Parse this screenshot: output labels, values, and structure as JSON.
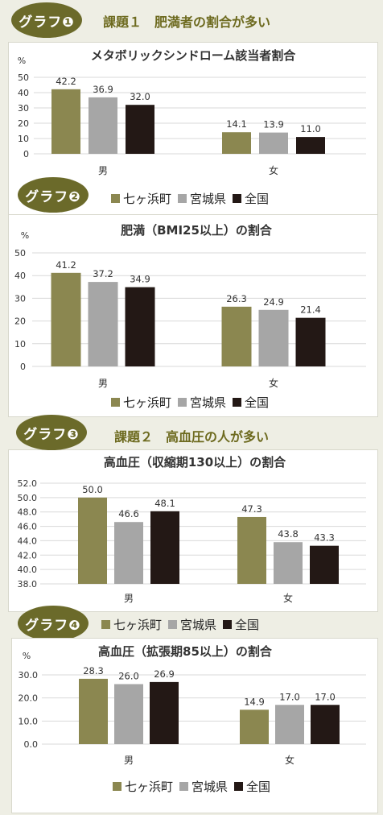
{
  "colors": {
    "local": "#8b8750",
    "pref": "#a6a6a6",
    "nation": "#231815",
    "badge": "#6b6a2a",
    "topic": "#6d6a1f"
  },
  "sections": [
    {
      "badge": "グラフ❶",
      "topic": "課題１　肥満者の割合が多い"
    },
    {
      "badge": "グラフ❷",
      "topic": ""
    },
    {
      "badge": "グラフ❸",
      "topic": "課題２　高血圧の人が多い"
    },
    {
      "badge": "グラフ❹",
      "topic": ""
    }
  ],
  "legend": [
    "七ヶ浜町",
    "宮城県",
    "全国"
  ],
  "chart_data": [
    {
      "type": "bar",
      "title": "メタボリックシンドローム該当者割合",
      "unit": "%",
      "categories": [
        "男",
        "女"
      ],
      "series": [
        {
          "name": "七ヶ浜町",
          "values": [
            42.2,
            14.1
          ]
        },
        {
          "name": "宮城県",
          "values": [
            36.9,
            13.9
          ]
        },
        {
          "name": "全国",
          "values": [
            32.0,
            11.0
          ]
        }
      ],
      "labels": [
        [
          "42.2",
          "14.1"
        ],
        [
          "36.9",
          "13.9"
        ],
        [
          "32.0",
          "11.0"
        ]
      ],
      "ylim": [
        0,
        50
      ],
      "yticks": [
        "0",
        "10",
        "20",
        "30",
        "40",
        "50"
      ],
      "grid": true
    },
    {
      "type": "bar",
      "title": "肥満（BMI25以上）の割合",
      "unit": "%",
      "categories": [
        "男",
        "女"
      ],
      "series": [
        {
          "name": "七ヶ浜町",
          "values": [
            41.2,
            26.3
          ]
        },
        {
          "name": "宮城県",
          "values": [
            37.2,
            24.9
          ]
        },
        {
          "name": "全国",
          "values": [
            34.9,
            21.4
          ]
        }
      ],
      "labels": [
        [
          "41.2",
          "26.3"
        ],
        [
          "37.2",
          "24.9"
        ],
        [
          "34.9",
          "21.4"
        ]
      ],
      "ylim": [
        0,
        50
      ],
      "yticks": [
        "0",
        "10",
        "20",
        "30",
        "40",
        "50"
      ],
      "grid": true
    },
    {
      "type": "bar",
      "title": "高血圧（収縮期130以上）の割合",
      "unit": "",
      "categories": [
        "男",
        "女"
      ],
      "series": [
        {
          "name": "七ヶ浜町",
          "values": [
            50.0,
            47.3
          ]
        },
        {
          "name": "宮城県",
          "values": [
            46.6,
            43.8
          ]
        },
        {
          "name": "全国",
          "values": [
            48.1,
            43.3
          ]
        }
      ],
      "labels": [
        [
          "50.0",
          "47.3"
        ],
        [
          "46.6",
          "43.8"
        ],
        [
          "48.1",
          "43.3"
        ]
      ],
      "ylim": [
        38,
        52
      ],
      "yticks": [
        "38.0",
        "40.0",
        "42.0",
        "44.0",
        "46.0",
        "48.0",
        "50.0",
        "52.0"
      ],
      "grid": true
    },
    {
      "type": "bar",
      "title": "高血圧（拡張期85以上）の割合",
      "unit": "%",
      "categories": [
        "男",
        "女"
      ],
      "series": [
        {
          "name": "七ヶ浜町",
          "values": [
            28.3,
            14.9
          ]
        },
        {
          "name": "宮城県",
          "values": [
            26.0,
            17.0
          ]
        },
        {
          "name": "全国",
          "values": [
            26.9,
            17.0
          ]
        }
      ],
      "labels": [
        [
          "28.3",
          "14.9"
        ],
        [
          "26.0",
          "17.0"
        ],
        [
          "26.9",
          "17.0"
        ]
      ],
      "ylim": [
        0,
        30
      ],
      "yticks": [
        "0.0",
        "10.0",
        "20.0",
        "30.0"
      ],
      "grid": true
    }
  ]
}
